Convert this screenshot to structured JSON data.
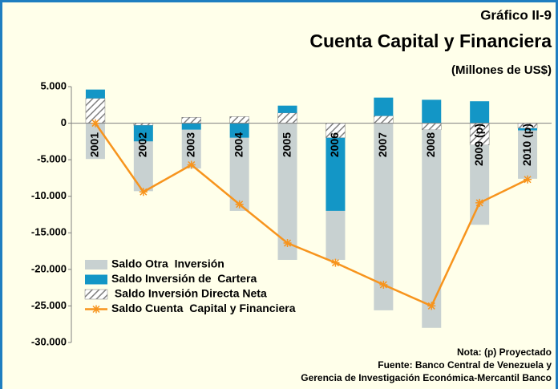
{
  "chart_data": {
    "type": "bar",
    "title": "Cuenta Capital y Financiera",
    "supertitle": "Gráfico II-9",
    "subtitle": "(Millones de US$)",
    "notes": [
      "Nota: (p) Proyectado",
      "Fuente: Banco Central de Venezuela y",
      "Gerencia de Investigación Económica-Mercantil Banco"
    ],
    "categories": [
      "2001",
      "2002",
      "2003",
      "2004",
      "2005",
      "2006",
      "2007",
      "2008",
      "2009 (p)",
      "2010 (p)"
    ],
    "series": [
      {
        "name": "Saldo Otra  Inversión",
        "type": "bar",
        "color": "#c8d1d1",
        "values": [
          -4900,
          -6800,
          -5300,
          -10000,
          -18700,
          -6700,
          -25600,
          -27100,
          -10900,
          -6600
        ]
      },
      {
        "name": "Saldo Inversión de  Cartera",
        "type": "bar",
        "color": "#1396c6",
        "values": [
          1200,
          -2200,
          -900,
          -2000,
          1000,
          -10000,
          2500,
          3200,
          3000,
          -300
        ]
      },
      {
        "name": " Saldo Inversión Directa Neta",
        "type": "bar",
        "color": "#808080",
        "hatch": true,
        "values": [
          3400,
          -300,
          800,
          900,
          1400,
          -2000,
          1000,
          -900,
          -3000,
          -700
        ]
      },
      {
        "name": "Saldo Cuenta  Capital y Financiera",
        "type": "line",
        "color": "#f7941d",
        "values": [
          0,
          -9400,
          -5700,
          -11100,
          -16400,
          -19100,
          -22100,
          -25000,
          -10900,
          -7700
        ]
      }
    ],
    "ylim": [
      -30000,
      5000
    ],
    "yticks": [
      {
        "value": 5000,
        "label": "5.000"
      },
      0,
      {
        "value": -5000,
        "label": "-5.000"
      },
      {
        "value": -10000,
        "label": "-10.000"
      },
      {
        "value": -15000,
        "label": "-15.000"
      },
      {
        "value": -20000,
        "label": "-20.000"
      },
      {
        "value": -25000,
        "label": "-25.000"
      },
      {
        "value": -30000,
        "label": "-30.000"
      }
    ]
  }
}
